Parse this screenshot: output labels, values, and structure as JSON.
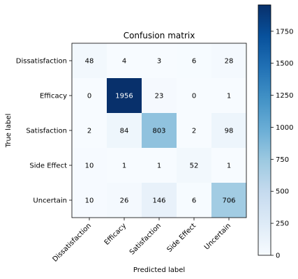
{
  "chart_data": {
    "type": "heatmap",
    "title": "Confusion matrix",
    "xlabel": "Predicted label",
    "ylabel": "True label",
    "x_categories": [
      "Dissatisfaction",
      "Efficacy",
      "Satisfaction",
      "Side Effect",
      "Uncertain"
    ],
    "y_categories": [
      "Dissatisfaction",
      "Efficacy",
      "Satisfaction",
      "Side Effect",
      "Uncertain"
    ],
    "values": [
      [
        48,
        4,
        3,
        6,
        28
      ],
      [
        0,
        1956,
        23,
        0,
        1
      ],
      [
        2,
        84,
        803,
        2,
        98
      ],
      [
        10,
        1,
        1,
        52,
        1
      ],
      [
        10,
        26,
        146,
        6,
        706
      ]
    ],
    "colormap": "Blues",
    "colorbar": {
      "range": [
        0,
        1956
      ],
      "ticks": [
        0,
        250,
        500,
        750,
        1000,
        1250,
        1500,
        1750
      ]
    },
    "text_color_light": "#ffffff",
    "text_color_dark": "#000000"
  }
}
